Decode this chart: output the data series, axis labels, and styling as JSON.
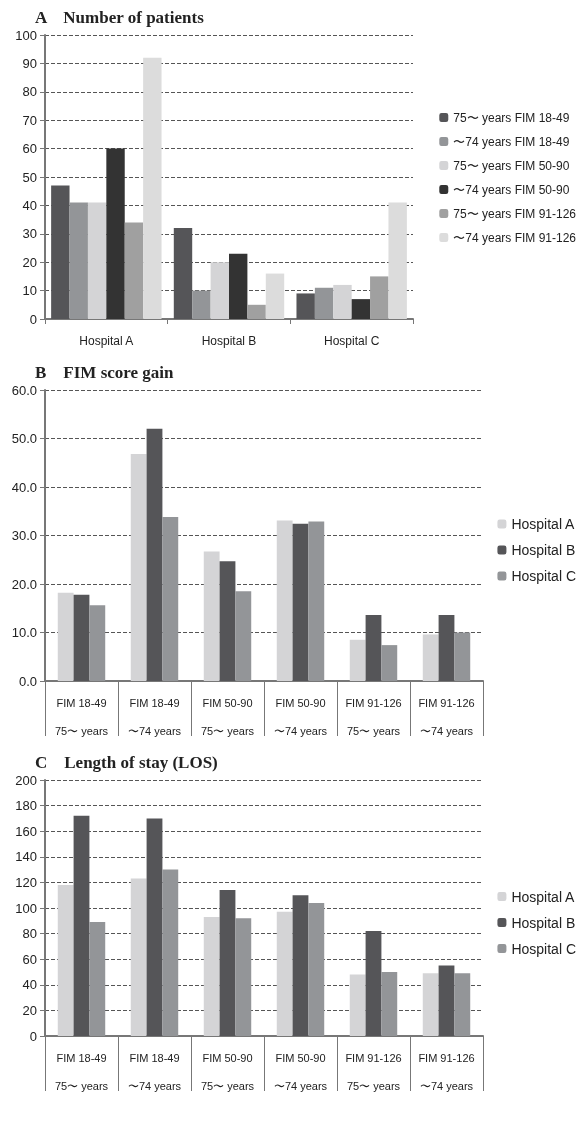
{
  "chart_data": [
    {
      "type": "bar",
      "title": "A　Number of patients",
      "categories": [
        "Hospital A",
        "Hospital B",
        "Hospital C"
      ],
      "series": [
        {
          "name": "75〜 years FIM 18-49",
          "color": "#555558",
          "values": [
            47,
            32,
            9
          ]
        },
        {
          "name": "〜74 years FIM 18-49",
          "color": "#939598",
          "values": [
            41,
            10,
            11
          ]
        },
        {
          "name": "75〜 years FIM 50-90",
          "color": "#d4d4d6",
          "values": [
            41,
            20,
            12
          ]
        },
        {
          "name": "〜74 years FIM 50-90",
          "color": "#333333",
          "values": [
            60,
            23,
            7
          ]
        },
        {
          "name": "75〜 years FIM 91-126",
          "color": "#a0a0a0",
          "values": [
            34,
            5,
            15
          ]
        },
        {
          "name": "〜74 years FIM 91-126",
          "color": "#dcdcdc",
          "values": [
            92,
            16,
            41
          ]
        }
      ],
      "ylim": [
        0,
        100
      ],
      "yticks": [
        0,
        10,
        20,
        30,
        40,
        50,
        60,
        70,
        80,
        90,
        100
      ],
      "grid": "y",
      "legend": "right"
    },
    {
      "type": "bar",
      "title": "B　FIM score gain",
      "categories": [
        "FIM 18-49\n75〜 years",
        "FIM 18-49\n〜74 years",
        "FIM 50-90\n75〜 years",
        "FIM 50-90\n〜74 years",
        "FIM 91-126\n75〜 years",
        "FIM 91-126\n〜74 years"
      ],
      "series": [
        {
          "name": "Hospital A",
          "color": "#d4d4d6",
          "values": [
            18.2,
            46.8,
            26.7,
            33.1,
            8.5,
            9.6
          ]
        },
        {
          "name": "Hospital B",
          "color": "#555558",
          "values": [
            17.8,
            52.0,
            24.7,
            32.4,
            13.6,
            13.6
          ]
        },
        {
          "name": "Hospital C",
          "color": "#939598",
          "values": [
            15.6,
            33.8,
            18.5,
            32.9,
            7.4,
            10.0
          ]
        }
      ],
      "ylim": [
        0,
        60
      ],
      "yticks": [
        {
          "value": 0,
          "label": "0.0"
        },
        {
          "value": 10,
          "label": "10.0"
        },
        {
          "value": 20,
          "label": "20.0"
        },
        {
          "value": 30,
          "label": "30.0"
        },
        {
          "value": 40,
          "label": "40.0"
        },
        {
          "value": 50,
          "label": "50.0"
        },
        {
          "value": 60,
          "label": "60.0"
        }
      ],
      "grid": "y",
      "legend": "right"
    },
    {
      "type": "bar",
      "title": "C　Length of stay (LOS)",
      "categories": [
        "FIM 18-49\n75〜 years",
        "FIM 18-49\n〜74 years",
        "FIM 50-90\n75〜 years",
        "FIM 50-90\n〜74 years",
        "FIM 91-126\n75〜 years",
        "FIM 91-126\n〜74 years"
      ],
      "series": [
        {
          "name": "Hospital A",
          "color": "#d4d4d6",
          "values": [
            118,
            123,
            93,
            97,
            48,
            49
          ]
        },
        {
          "name": "Hospital B",
          "color": "#555558",
          "values": [
            172,
            170,
            114,
            110,
            82,
            55
          ]
        },
        {
          "name": "Hospital C",
          "color": "#939598",
          "values": [
            89,
            130,
            92,
            104,
            50,
            49
          ]
        }
      ],
      "ylim": [
        0,
        200
      ],
      "yticks": [
        0,
        20,
        40,
        60,
        80,
        100,
        120,
        140,
        160,
        180,
        200
      ],
      "grid": "y",
      "legend": "right"
    }
  ]
}
